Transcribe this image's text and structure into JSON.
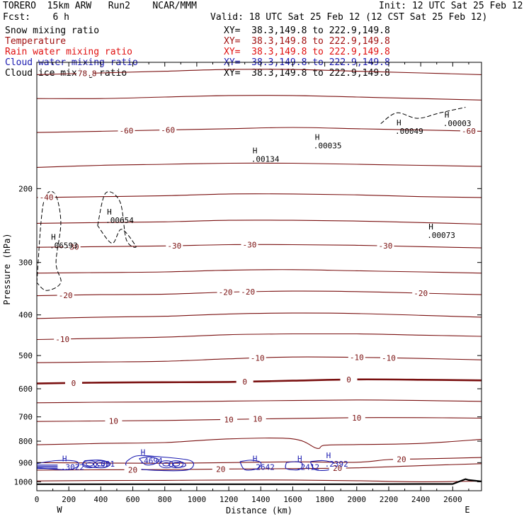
{
  "header": {
    "model": "TORERO  15km ARW   Run2    NCAR/MMM",
    "init": "Init: 12 UTC Sat 25 Feb 12",
    "fcst": "Fcst:    6 h",
    "valid": "Valid: 18 UTC Sat 25 Feb 12 (12 CST Sat 25 Feb 12)"
  },
  "fields": [
    {
      "label": "Snow mixing ratio",
      "xy": "XY=  38.3,149.8 to 222.9,149.8",
      "color": "#000000"
    },
    {
      "label": "Temperature",
      "xy": "XY=  38.3,149.8 to 222.9,149.8",
      "color": "#a01010"
    },
    {
      "label": "Rain water mixing ratio",
      "xy": "XY=  38.3,149.8 to 222.9,149.8",
      "color": "#e01010"
    },
    {
      "label": "Cloud water mixing ratio",
      "xy": "XY=  38.3,149.8 to 222.9,149.8",
      "color": "#1a1ab0"
    },
    {
      "label": "Cloud ice mixing ratio",
      "xy": "XY=  38.3,149.8 to 222.9,149.8",
      "color": "#000000"
    }
  ],
  "colors": {
    "temperature": "#7a1010",
    "cloud_water": "#1a1ab0",
    "snow": "#000000",
    "terrain": "#000000"
  },
  "chart_data": {
    "type": "line",
    "chart_kind": "vertical cross-section",
    "xlabel": "Distance (km)",
    "ylabel": "Pressure (hPa)",
    "xlim": [
      0,
      2780
    ],
    "ylim": [
      1050,
      100
    ],
    "y_scale": "log",
    "grid": false,
    "x_ticks": [
      "0",
      "200",
      "400",
      "600",
      "800",
      "1000",
      "1200",
      "1400",
      "1600",
      "1800",
      "2000",
      "2200",
      "2400",
      "2600"
    ],
    "y_ticks": [
      "200",
      "300",
      "400",
      "500",
      "600",
      "700",
      "800",
      "900",
      "1000"
    ],
    "x_ends": {
      "left": "W",
      "right": "E"
    },
    "temperature_isotherms": {
      "interval": 5,
      "labels_shown": [
        "-78.8",
        "-60",
        "-60",
        "-60",
        "-40",
        "-30",
        "-30",
        "-30",
        "-30",
        "-20",
        "-20",
        "-20",
        "-20",
        "-10",
        "-10",
        "-10",
        "-10",
        "0",
        "0",
        "0",
        "10",
        "10",
        "10",
        "10",
        "20",
        "20",
        "20",
        "20"
      ],
      "bold_zero": true,
      "lines": [
        {
          "x": [
            0,
            400,
            800,
            1200,
            1600,
            2000,
            2400,
            2780
          ],
          "p": [
            107,
            106,
            105,
            104,
            104,
            105,
            106,
            107
          ]
        },
        {
          "x": [
            0,
            400,
            800,
            1200,
            1600,
            2000,
            2400,
            2780
          ],
          "p": [
            122,
            122,
            121,
            120,
            120,
            121,
            122,
            123
          ]
        },
        {
          "x": [
            0,
            400,
            800,
            1200,
            1600,
            2000,
            2400,
            2780
          ],
          "p": [
            147,
            146,
            145,
            144,
            143,
            144,
            145,
            146
          ]
        },
        {
          "x": [
            0,
            400,
            800,
            1200,
            1600,
            2000,
            2400,
            2780
          ],
          "p": [
            178,
            176,
            175,
            174,
            174,
            175,
            176,
            177
          ]
        },
        {
          "x": [
            0,
            400,
            800,
            1200,
            1600,
            2000,
            2400,
            2780
          ],
          "p": [
            210,
            209,
            208,
            206,
            206,
            207,
            209,
            210
          ]
        },
        {
          "x": [
            0,
            400,
            800,
            1200,
            1600,
            2000,
            2400,
            2780
          ],
          "p": [
            242,
            241,
            240,
            238,
            238,
            239,
            241,
            243
          ]
        },
        {
          "x": [
            0,
            400,
            800,
            1200,
            1600,
            2000,
            2400,
            2780
          ],
          "p": [
            276,
            275,
            274,
            272,
            272,
            273,
            275,
            277
          ]
        },
        {
          "x": [
            0,
            400,
            800,
            1200,
            1600,
            2000,
            2400,
            2780
          ],
          "p": [
            318,
            317,
            316,
            313,
            312,
            314,
            316,
            318
          ]
        },
        {
          "x": [
            0,
            400,
            800,
            1200,
            1600,
            2000,
            2400,
            2780
          ],
          "p": [
            360,
            358,
            357,
            353,
            351,
            352,
            355,
            358
          ]
        },
        {
          "x": [
            0,
            400,
            800,
            1200,
            1600,
            2000,
            2400,
            2780
          ],
          "p": [
            408,
            405,
            403,
            398,
            396,
            397,
            401,
            405
          ]
        },
        {
          "x": [
            0,
            400,
            800,
            1200,
            1600,
            2000,
            2400,
            2780
          ],
          "p": [
            458,
            455,
            452,
            446,
            444,
            444,
            447,
            450
          ]
        },
        {
          "x": [
            0,
            400,
            800,
            1200,
            1600,
            2000,
            2400,
            2780
          ],
          "p": [
            520,
            518,
            516,
            509,
            504,
            505,
            508,
            512
          ]
        },
        {
          "x": [
            0,
            400,
            800,
            1200,
            1600,
            2000,
            2400,
            2780
          ],
          "p": [
            583,
            580,
            579,
            578,
            574,
            570,
            571,
            573
          ]
        },
        {
          "x": [
            0,
            400,
            800,
            1200,
            1600,
            2000,
            2400,
            2780
          ],
          "p": [
            648,
            646,
            645,
            642,
            640,
            638,
            640,
            643
          ]
        },
        {
          "x": [
            0,
            400,
            800,
            1200,
            1600,
            2000,
            2400,
            2780
          ],
          "p": [
            718,
            716,
            714,
            710,
            706,
            703,
            703,
            705
          ]
        },
        {
          "x": [
            0,
            400,
            800,
            1200,
            1600,
            1750,
            1800,
            2000,
            2400,
            2780
          ],
          "p": [
            816,
            810,
            806,
            790,
            790,
            832,
            818,
            815,
            810,
            792
          ]
        },
        {
          "x": [
            0,
            400,
            800,
            1200,
            1600,
            2000,
            2200,
            2400,
            2780
          ],
          "p": [
            900,
            902,
            903,
            900,
            896,
            898,
            885,
            882,
            875
          ]
        },
        {
          "x": [
            0,
            400,
            800,
            1200,
            1600,
            2000,
            2400,
            2780
          ],
          "p": [
            938,
            936,
            935,
            932,
            930,
            926,
            915,
            905
          ]
        },
        {
          "x": [
            0,
            400,
            800,
            1200,
            1600,
            2000,
            2400,
            2780
          ],
          "p": [
            995,
            993,
            992,
            990,
            990,
            994,
            1000,
            996
          ]
        }
      ]
    },
    "maxima": [
      {
        "label": "H",
        "value": ".06593",
        "x": 80,
        "p": 270
      },
      {
        "label": "H",
        "value": ".00654",
        "x": 430,
        "p": 235
      },
      {
        "label": "H",
        "value": ".00134",
        "x": 1340,
        "p": 168
      },
      {
        "label": "H",
        "value": ".00035",
        "x": 1730,
        "p": 156
      },
      {
        "label": "H",
        "value": ".00049",
        "x": 2240,
        "p": 144
      },
      {
        "label": "H",
        "value": ".00003",
        "x": 2540,
        "p": 138
      },
      {
        "label": "H",
        "value": ".00073",
        "x": 2440,
        "p": 255
      },
      {
        "label": "H",
        "value": ".3022",
        "x": 150,
        "p": 912
      },
      {
        "label": "",
        "value": ".001",
        "x": 370,
        "p": 895
      },
      {
        "label": "H",
        "value": ".4694",
        "x": 640,
        "p": 880
      },
      {
        "label": "H",
        "value": ".2642",
        "x": 1340,
        "p": 912
      },
      {
        "label": "H",
        "value": ".2412",
        "x": 1620,
        "p": 912
      },
      {
        "label": "H",
        "value": ".2392",
        "x": 1800,
        "p": 896
      }
    ],
    "terrain": {
      "x": [
        0,
        400,
        800,
        1200,
        1600,
        2000,
        2400,
        2600,
        2680,
        2700,
        2780
      ],
      "p": [
        1013,
        1013,
        1013,
        1013,
        1013,
        1013,
        1012,
        1012,
        985,
        990,
        998
      ]
    }
  }
}
